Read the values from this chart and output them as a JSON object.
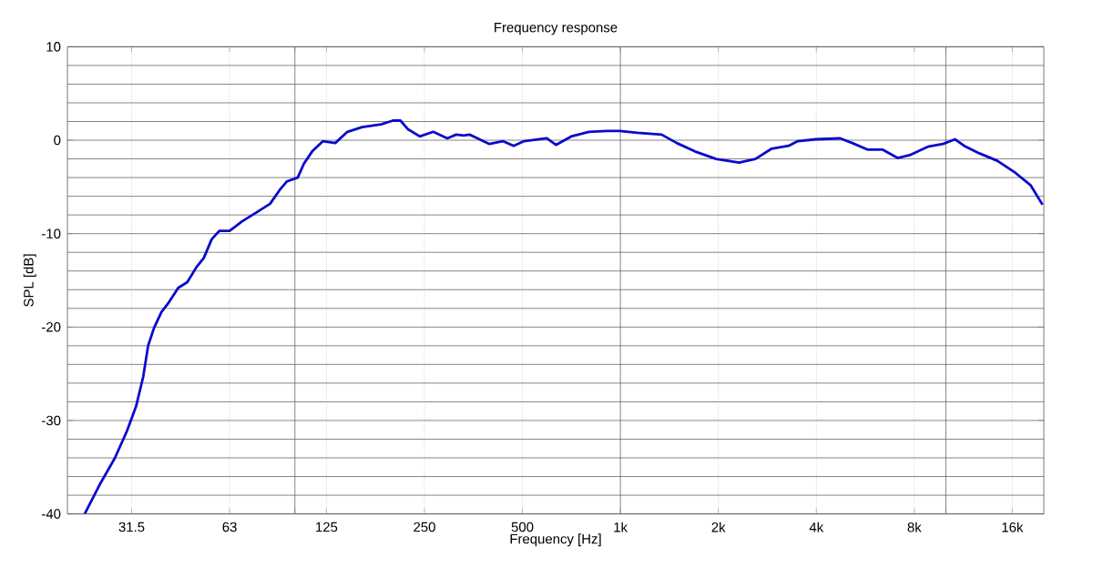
{
  "chart_data": {
    "type": "line",
    "title": "Frequency response",
    "xlabel": "Frequency [Hz]",
    "ylabel": "SPL [dB]",
    "log": "x",
    "grid": true,
    "color": "#0a0acc",
    "xlim": [
      20,
      20000
    ],
    "ylim": [
      -40,
      10
    ],
    "xticks": [
      31.5,
      63,
      {
        "value": 100,
        "label": null
      },
      125,
      250,
      500,
      {
        "value": 1000,
        "label": "1k"
      },
      {
        "value": 2000,
        "label": "2k"
      },
      {
        "value": 4000,
        "label": "4k"
      },
      {
        "value": 8000,
        "label": "8k"
      },
      {
        "value": 10000,
        "label": null
      },
      {
        "value": 16000,
        "label": "16k"
      }
    ],
    "yticks": [
      -40,
      -30,
      -20,
      -10,
      0,
      10
    ],
    "x": [
      22.6,
      25.1,
      28,
      30.5,
      32.5,
      34.2,
      35.4,
      36.9,
      38.9,
      41.1,
      43.8,
      46.7,
      49.8,
      52.5,
      55.5,
      58.6,
      63,
      68.7,
      76.4,
      83.9,
      89.9,
      94.6,
      102,
      106.6,
      113,
      122,
      133,
      145,
      161,
      184,
      200,
      211,
      222,
      242,
      266,
      294,
      313,
      330,
      344,
      364,
      396,
      435,
      470,
      506,
      594,
      634,
      706,
      800,
      910,
      995,
      1127,
      1339,
      1490,
      1694,
      1968,
      2315,
      2600,
      2918,
      3289,
      3507,
      3990,
      4732,
      5156,
      5738,
      6385,
      7106,
      7744,
      8805,
      9799,
      10675,
      11382,
      12664,
      14388,
      16368,
      18197,
      19818
    ],
    "values": [
      -40,
      -36.9,
      -34,
      -31.1,
      -28.5,
      -25.3,
      -22,
      -20.1,
      -18.4,
      -17.3,
      -15.8,
      -15.2,
      -13.6,
      -12.6,
      -10.6,
      -9.7,
      -9.7,
      -8.7,
      -7.7,
      -6.8,
      -5.3,
      -4.4,
      -4,
      -2.5,
      -1.2,
      -0.1,
      -0.3,
      0.9,
      1.4,
      1.7,
      2.1,
      2.1,
      1.2,
      0.4,
      0.9,
      0.2,
      0.6,
      0.5,
      0.6,
      0.2,
      -0.4,
      -0.1,
      -0.6,
      -0.1,
      0.2,
      -0.5,
      0.4,
      0.9,
      1,
      1,
      0.8,
      0.6,
      -0.3,
      -1.2,
      -2,
      -2.4,
      -2,
      -0.9,
      -0.6,
      -0.1,
      0.1,
      0.2,
      -0.3,
      -1,
      -1,
      -1.9,
      -1.6,
      -0.7,
      -0.4,
      0.1,
      -0.6,
      -1.4,
      -2.2,
      -3.5,
      -4.8,
      -6.9
    ]
  }
}
